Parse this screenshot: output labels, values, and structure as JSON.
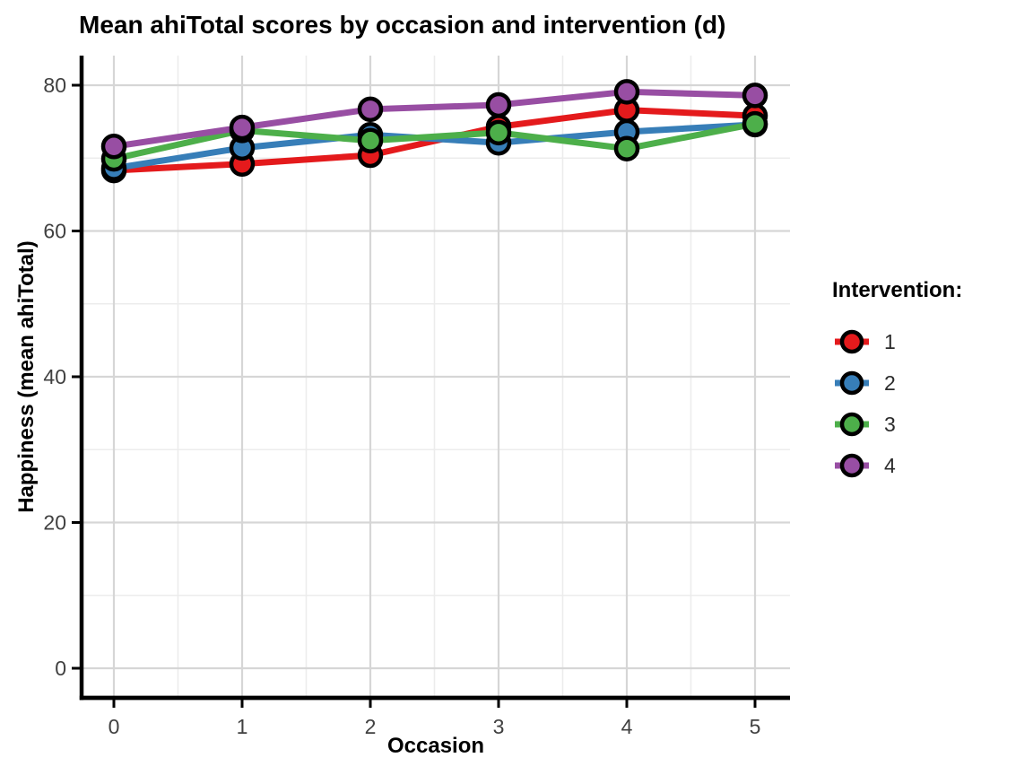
{
  "chart_data": {
    "type": "line",
    "title": "Mean ahiTotal scores by occasion and intervention (d)",
    "xlabel": "Occasion",
    "ylabel": "Happiness (mean ahiTotal)",
    "x": [
      0,
      1,
      2,
      3,
      4,
      5
    ],
    "x_tick_labels": [
      "0",
      "1",
      "2",
      "3",
      "4",
      "5"
    ],
    "y_tick_values": [
      0,
      20,
      40,
      60,
      80
    ],
    "y_tick_labels": [
      "0",
      "20",
      "40",
      "60",
      "80"
    ],
    "y_minor_values": [
      10,
      30,
      50,
      70
    ],
    "x_minor_values": [
      0.5,
      1.5,
      2.5,
      3.5,
      4.5
    ],
    "xlim": [
      -0.26,
      5.28
    ],
    "ylim": [
      -4,
      84
    ],
    "grid": "major and minor, light gray on white",
    "legend": {
      "title": "Intervention:",
      "position": "right"
    },
    "series": [
      {
        "name": "1",
        "color": "#E41A1C",
        "values": [
          68.3,
          69.2,
          70.4,
          74.3,
          76.6,
          75.8
        ]
      },
      {
        "name": "2",
        "color": "#377EB8",
        "values": [
          68.6,
          71.4,
          73.2,
          72.1,
          73.6,
          74.6
        ]
      },
      {
        "name": "3",
        "color": "#4DAF4A",
        "values": [
          69.9,
          73.8,
          72.4,
          73.5,
          71.3,
          74.7
        ]
      },
      {
        "name": "4",
        "color": "#984EA3",
        "values": [
          71.6,
          74.2,
          76.7,
          77.3,
          79.1,
          78.6
        ]
      }
    ],
    "style": {
      "grid_major_color": "#d6d6d6",
      "grid_minor_color": "#ececec",
      "axis_color": "#000000",
      "point_outline_color": "#000000",
      "tick_label_color": "#404040"
    }
  }
}
